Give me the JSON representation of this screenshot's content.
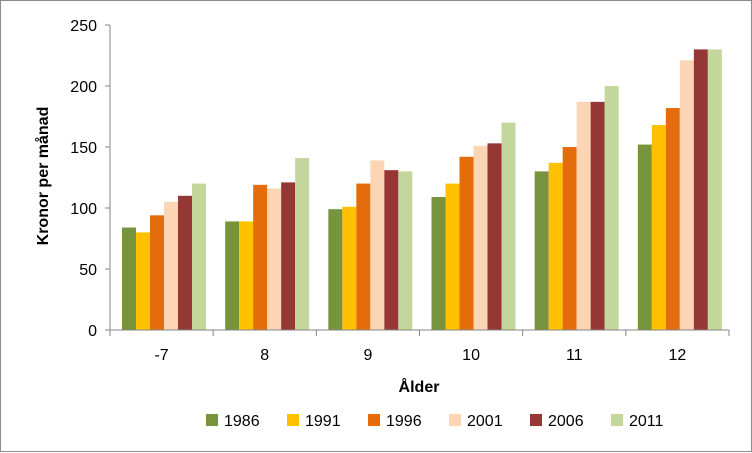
{
  "chart_data": {
    "type": "bar",
    "xlabel": "Ålder",
    "ylabel": "Kronor per månad",
    "categories": [
      "-7",
      "8",
      "9",
      "10",
      "11",
      "12"
    ],
    "ylim": [
      0,
      250
    ],
    "yticks": [
      0,
      50,
      100,
      150,
      200,
      250
    ],
    "grid": false,
    "legend_position": "bottom",
    "series": [
      {
        "name": "1986",
        "color": "#77933c",
        "values": [
          84,
          89,
          99,
          109,
          130,
          152
        ]
      },
      {
        "name": "1991",
        "color": "#ffc000",
        "values": [
          80,
          89,
          101,
          120,
          137,
          168
        ]
      },
      {
        "name": "1996",
        "color": "#e46c0a",
        "values": [
          94,
          119,
          120,
          142,
          150,
          182
        ]
      },
      {
        "name": "2001",
        "color": "#fcd5b5",
        "values": [
          105,
          116,
          139,
          151,
          187,
          221
        ]
      },
      {
        "name": "2006",
        "color": "#953735",
        "values": [
          110,
          121,
          131,
          153,
          187,
          230
        ]
      },
      {
        "name": "2011",
        "color": "#c3d69b",
        "values": [
          120,
          141,
          130,
          170,
          200,
          230
        ]
      }
    ]
  }
}
